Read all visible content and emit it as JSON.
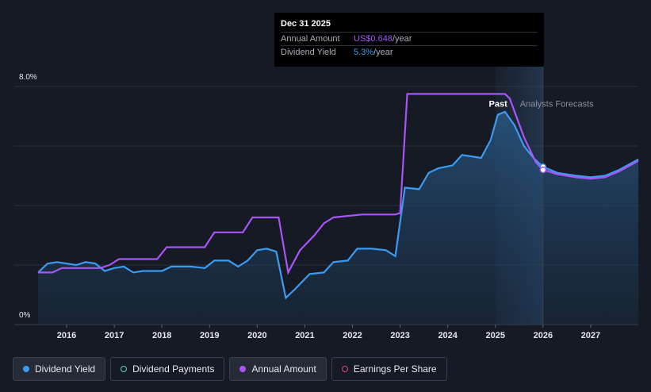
{
  "tooltip": {
    "date": "Dec 31 2025",
    "rows": [
      {
        "label": "Annual Amount",
        "value": "US$0.648",
        "unit": "/year",
        "color": "#a855f7"
      },
      {
        "label": "Dividend Yield",
        "value": "5.3%",
        "unit": "/year",
        "color": "#3b9bf0"
      }
    ]
  },
  "annotations": {
    "past": "Past",
    "forecast": "Analysts Forecasts"
  },
  "legend": [
    {
      "label": "Dividend Yield",
      "color": "#3b9bf0",
      "filled": true,
      "active": true
    },
    {
      "label": "Dividend Payments",
      "color": "#5ed3c0",
      "filled": false,
      "active": false
    },
    {
      "label": "Annual Amount",
      "color": "#a855f7",
      "filled": true,
      "active": true
    },
    {
      "label": "Earnings Per Share",
      "color": "#e0457b",
      "filled": false,
      "active": false
    }
  ],
  "colors": {
    "yield": "#3b9bf0",
    "amount": "#a855f7",
    "grid": "#2a303b"
  },
  "chart_data": {
    "type": "line",
    "x_ticks": [
      "2016",
      "2017",
      "2018",
      "2019",
      "2020",
      "2021",
      "2022",
      "2023",
      "2024",
      "2025",
      "2026",
      "2027"
    ],
    "y_ticks": [
      "0%",
      "8.0%"
    ],
    "ylim": [
      0,
      8.0
    ],
    "xlim": [
      2015.4,
      2028.0
    ],
    "forecast_start": 2025.0,
    "series": [
      {
        "name": "Dividend Yield",
        "unit": "%",
        "points": [
          [
            2015.4,
            1.75
          ],
          [
            2015.6,
            2.05
          ],
          [
            2015.8,
            2.1
          ],
          [
            2016.0,
            2.05
          ],
          [
            2016.2,
            2.0
          ],
          [
            2016.4,
            2.1
          ],
          [
            2016.6,
            2.05
          ],
          [
            2016.8,
            1.8
          ],
          [
            2017.0,
            1.9
          ],
          [
            2017.2,
            1.95
          ],
          [
            2017.4,
            1.75
          ],
          [
            2017.6,
            1.8
          ],
          [
            2017.8,
            1.8
          ],
          [
            2018.0,
            1.8
          ],
          [
            2018.2,
            1.95
          ],
          [
            2018.6,
            1.95
          ],
          [
            2018.9,
            1.9
          ],
          [
            2019.1,
            2.15
          ],
          [
            2019.4,
            2.15
          ],
          [
            2019.6,
            1.95
          ],
          [
            2019.8,
            2.15
          ],
          [
            2020.0,
            2.5
          ],
          [
            2020.2,
            2.55
          ],
          [
            2020.4,
            2.45
          ],
          [
            2020.6,
            0.9
          ],
          [
            2020.8,
            1.2
          ],
          [
            2021.1,
            1.7
          ],
          [
            2021.4,
            1.75
          ],
          [
            2021.6,
            2.1
          ],
          [
            2021.9,
            2.15
          ],
          [
            2022.1,
            2.55
          ],
          [
            2022.4,
            2.55
          ],
          [
            2022.7,
            2.5
          ],
          [
            2022.9,
            2.3
          ],
          [
            2023.1,
            4.6
          ],
          [
            2023.4,
            4.55
          ],
          [
            2023.6,
            5.1
          ],
          [
            2023.8,
            5.25
          ],
          [
            2024.1,
            5.35
          ],
          [
            2024.3,
            5.7
          ],
          [
            2024.5,
            5.65
          ],
          [
            2024.7,
            5.6
          ],
          [
            2024.9,
            6.2
          ],
          [
            2025.05,
            7.05
          ],
          [
            2025.2,
            7.15
          ],
          [
            2025.4,
            6.7
          ],
          [
            2025.6,
            6.0
          ],
          [
            2025.8,
            5.6
          ],
          [
            2026.0,
            5.3
          ],
          [
            2026.3,
            5.1
          ],
          [
            2026.7,
            5.0
          ],
          [
            2027.0,
            4.95
          ],
          [
            2027.3,
            5.0
          ],
          [
            2027.6,
            5.2
          ],
          [
            2028.0,
            5.55
          ]
        ]
      },
      {
        "name": "Annual Amount",
        "unit": "% (plotted on yield scale)",
        "points": [
          [
            2015.4,
            1.75
          ],
          [
            2015.7,
            1.75
          ],
          [
            2015.9,
            1.9
          ],
          [
            2016.7,
            1.9
          ],
          [
            2016.9,
            2.0
          ],
          [
            2017.1,
            2.2
          ],
          [
            2017.9,
            2.2
          ],
          [
            2018.1,
            2.6
          ],
          [
            2018.9,
            2.6
          ],
          [
            2019.1,
            3.1
          ],
          [
            2019.7,
            3.1
          ],
          [
            2019.9,
            3.6
          ],
          [
            2020.45,
            3.6
          ],
          [
            2020.65,
            1.75
          ],
          [
            2020.9,
            2.5
          ],
          [
            2021.2,
            3.0
          ],
          [
            2021.4,
            3.4
          ],
          [
            2021.6,
            3.6
          ],
          [
            2021.9,
            3.65
          ],
          [
            2022.2,
            3.7
          ],
          [
            2022.9,
            3.7
          ],
          [
            2023.0,
            3.75
          ],
          [
            2023.15,
            7.75
          ],
          [
            2025.2,
            7.75
          ],
          [
            2025.3,
            7.6
          ],
          [
            2025.6,
            6.3
          ],
          [
            2025.85,
            5.45
          ],
          [
            2026.0,
            5.2
          ],
          [
            2026.3,
            5.05
          ],
          [
            2026.7,
            4.95
          ],
          [
            2027.0,
            4.9
          ],
          [
            2027.3,
            4.95
          ],
          [
            2027.6,
            5.15
          ],
          [
            2028.0,
            5.5
          ]
        ]
      }
    ]
  }
}
